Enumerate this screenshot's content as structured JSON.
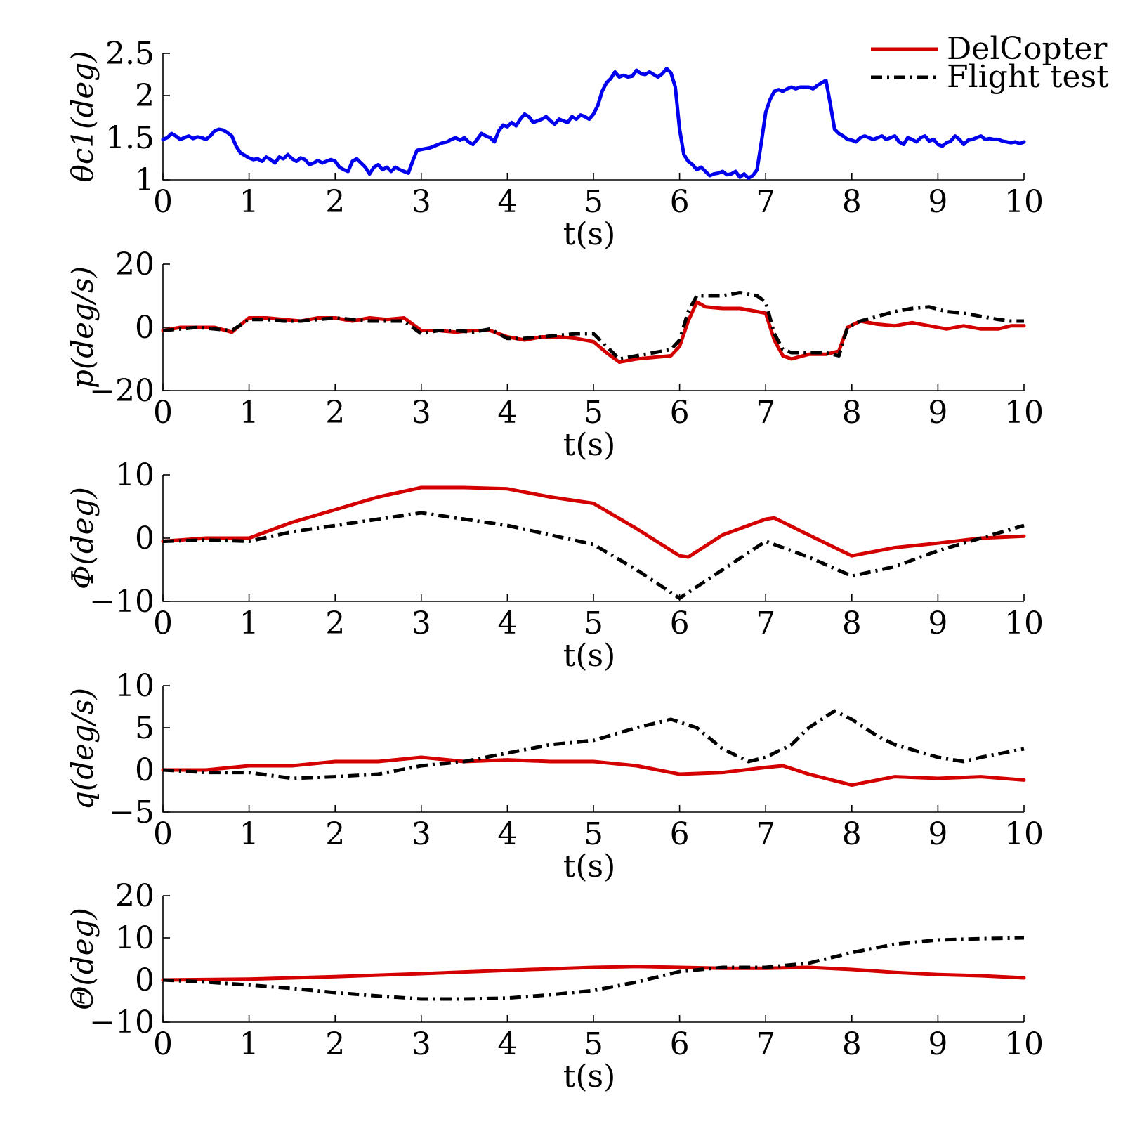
{
  "chart_data": [
    {
      "type": "line",
      "ylabel": "θc1(deg)",
      "xlabel": "t(s)",
      "xlim": [
        0,
        10
      ],
      "ylim": [
        1,
        2.5
      ],
      "xticks": [
        "0",
        "1",
        "2",
        "3",
        "4",
        "5",
        "6",
        "7",
        "8",
        "9",
        "10"
      ],
      "yticks": [
        "1",
        "1.5",
        "2",
        "2.5"
      ],
      "legend": {
        "position": "top-right",
        "entries": [
          {
            "name": "DelCopter",
            "color": "#d40000",
            "style": "solid"
          },
          {
            "name": "Flight test",
            "color": "#000000",
            "style": "dashdot"
          }
        ]
      },
      "series": [
        {
          "color": "#0000ee",
          "style": "solid",
          "x": [
            0,
            0.05,
            0.1,
            0.15,
            0.2,
            0.25,
            0.3,
            0.35,
            0.4,
            0.45,
            0.5,
            0.55,
            0.6,
            0.65,
            0.7,
            0.75,
            0.8,
            0.85,
            0.9,
            0.95,
            1,
            1.05,
            1.1,
            1.15,
            1.2,
            1.25,
            1.3,
            1.35,
            1.4,
            1.45,
            1.5,
            1.55,
            1.6,
            1.65,
            1.7,
            1.75,
            1.8,
            1.85,
            1.9,
            1.95,
            2,
            2.05,
            2.1,
            2.15,
            2.2,
            2.25,
            2.3,
            2.35,
            2.4,
            2.45,
            2.5,
            2.55,
            2.6,
            2.65,
            2.7,
            2.75,
            2.8,
            2.85,
            2.9,
            2.95,
            3,
            3.05,
            3.1,
            3.15,
            3.2,
            3.25,
            3.3,
            3.35,
            3.4,
            3.45,
            3.5,
            3.55,
            3.6,
            3.65,
            3.7,
            3.75,
            3.8,
            3.85,
            3.9,
            3.95,
            4,
            4.05,
            4.1,
            4.15,
            4.2,
            4.25,
            4.3,
            4.35,
            4.4,
            4.45,
            4.5,
            4.55,
            4.6,
            4.65,
            4.7,
            4.75,
            4.8,
            4.85,
            4.9,
            4.95,
            5,
            5.05,
            5.1,
            5.15,
            5.2,
            5.25,
            5.3,
            5.35,
            5.4,
            5.45,
            5.5,
            5.55,
            5.6,
            5.65,
            5.7,
            5.75,
            5.8,
            5.85,
            5.9,
            5.95,
            6,
            6.05,
            6.1,
            6.15,
            6.2,
            6.25,
            6.3,
            6.35,
            6.4,
            6.45,
            6.5,
            6.55,
            6.6,
            6.65,
            6.7,
            6.75,
            6.8,
            6.85,
            6.9,
            6.95,
            7,
            7.05,
            7.1,
            7.15,
            7.2,
            7.25,
            7.3,
            7.35,
            7.4,
            7.45,
            7.5,
            7.55,
            7.6,
            7.65,
            7.7,
            7.75,
            7.8,
            7.85,
            7.9,
            7.95,
            8,
            8.05,
            8.1,
            8.15,
            8.2,
            8.25,
            8.3,
            8.35,
            8.4,
            8.45,
            8.5,
            8.55,
            8.6,
            8.65,
            8.7,
            8.75,
            8.8,
            8.85,
            8.9,
            8.95,
            9,
            9.05,
            9.1,
            9.15,
            9.2,
            9.25,
            9.3,
            9.35,
            9.4,
            9.45,
            9.5,
            9.55,
            9.6,
            9.65,
            9.7,
            9.75,
            9.8,
            9.85,
            9.9,
            9.95,
            10
          ],
          "y": [
            1.48,
            1.5,
            1.55,
            1.52,
            1.48,
            1.5,
            1.52,
            1.49,
            1.51,
            1.5,
            1.48,
            1.52,
            1.58,
            1.6,
            1.59,
            1.56,
            1.52,
            1.4,
            1.32,
            1.29,
            1.26,
            1.24,
            1.25,
            1.22,
            1.27,
            1.24,
            1.2,
            1.27,
            1.25,
            1.3,
            1.25,
            1.22,
            1.26,
            1.24,
            1.18,
            1.2,
            1.23,
            1.2,
            1.22,
            1.24,
            1.22,
            1.15,
            1.12,
            1.1,
            1.22,
            1.25,
            1.2,
            1.15,
            1.07,
            1.15,
            1.18,
            1.12,
            1.15,
            1.1,
            1.15,
            1.12,
            1.1,
            1.08,
            1.22,
            1.35,
            1.36,
            1.37,
            1.38,
            1.4,
            1.42,
            1.44,
            1.45,
            1.48,
            1.5,
            1.47,
            1.5,
            1.45,
            1.42,
            1.48,
            1.55,
            1.52,
            1.5,
            1.45,
            1.58,
            1.65,
            1.63,
            1.68,
            1.64,
            1.72,
            1.78,
            1.75,
            1.68,
            1.7,
            1.72,
            1.75,
            1.7,
            1.66,
            1.72,
            1.7,
            1.68,
            1.75,
            1.72,
            1.77,
            1.75,
            1.72,
            1.78,
            1.88,
            2.05,
            2.15,
            2.2,
            2.28,
            2.22,
            2.24,
            2.22,
            2.23,
            2.3,
            2.26,
            2.25,
            2.28,
            2.25,
            2.22,
            2.26,
            2.32,
            2.27,
            2.1,
            1.6,
            1.3,
            1.22,
            1.18,
            1.12,
            1.15,
            1.1,
            1.05,
            1.07,
            1.08,
            1.1,
            1.06,
            1.07,
            1.1,
            1.03,
            1.07,
            1.02,
            1.05,
            1.12,
            1.45,
            1.8,
            1.95,
            2.05,
            2.07,
            2.05,
            2.08,
            2.1,
            2.08,
            2.1,
            2.1,
            2.1,
            2.08,
            2.12,
            2.15,
            2.18,
            1.9,
            1.6,
            1.55,
            1.52,
            1.48,
            1.47,
            1.45,
            1.5,
            1.52,
            1.5,
            1.48,
            1.5,
            1.52,
            1.48,
            1.5,
            1.52,
            1.45,
            1.42,
            1.5,
            1.48,
            1.45,
            1.5,
            1.52,
            1.46,
            1.48,
            1.42,
            1.4,
            1.44,
            1.46,
            1.52,
            1.48,
            1.42,
            1.47,
            1.48,
            1.5,
            1.52,
            1.48,
            1.49,
            1.48,
            1.48,
            1.46,
            1.45,
            1.44,
            1.45,
            1.43,
            1.45
          ]
        }
      ]
    },
    {
      "type": "line",
      "ylabel": "p(deg/s)",
      "xlabel": "t(s)",
      "xlim": [
        0,
        10
      ],
      "ylim": [
        -20,
        20
      ],
      "xticks": [
        "0",
        "1",
        "2",
        "3",
        "4",
        "5",
        "6",
        "7",
        "8",
        "9",
        "10"
      ],
      "yticks": [
        "−20",
        "0",
        "20"
      ],
      "series": [
        {
          "name": "DelCopter",
          "color": "#d40000",
          "style": "solid",
          "x": [
            0,
            0.2,
            0.4,
            0.6,
            0.8,
            1.0,
            1.2,
            1.4,
            1.6,
            1.8,
            2.0,
            2.2,
            2.4,
            2.6,
            2.8,
            3.0,
            3.2,
            3.4,
            3.6,
            3.8,
            4.0,
            4.2,
            4.4,
            4.6,
            4.8,
            5.0,
            5.15,
            5.3,
            5.5,
            5.7,
            5.9,
            6.0,
            6.1,
            6.2,
            6.3,
            6.5,
            6.7,
            6.9,
            7.0,
            7.1,
            7.2,
            7.3,
            7.5,
            7.7,
            7.85,
            7.95,
            8.1,
            8.3,
            8.5,
            8.7,
            8.9,
            9.1,
            9.3,
            9.5,
            9.7,
            9.85,
            10
          ],
          "y": [
            -1,
            0,
            0,
            0,
            -1.5,
            3,
            3,
            2.5,
            2,
            3,
            3,
            2,
            3,
            2.5,
            3,
            -1,
            -1,
            -1.5,
            -1,
            -1,
            -3,
            -4,
            -3,
            -3,
            -3.5,
            -4.5,
            -8,
            -11,
            -10,
            -9.5,
            -9,
            -6,
            2,
            8,
            6.5,
            6,
            6,
            5,
            4.5,
            -4,
            -9,
            -10,
            -8.5,
            -8.5,
            -7.5,
            0,
            2,
            1,
            0.5,
            1.5,
            0.5,
            -0.5,
            0.5,
            -0.5,
            -0.5,
            0.5,
            0.5
          ]
        },
        {
          "name": "Flight test",
          "color": "#000000",
          "style": "dashdot",
          "x": [
            0,
            0.2,
            0.4,
            0.6,
            0.8,
            1.0,
            1.2,
            1.4,
            1.6,
            1.8,
            2.0,
            2.2,
            2.4,
            2.6,
            2.8,
            3.0,
            3.2,
            3.4,
            3.6,
            3.8,
            4.0,
            4.2,
            4.4,
            4.6,
            4.8,
            5.0,
            5.15,
            5.3,
            5.5,
            5.7,
            5.9,
            6.0,
            6.1,
            6.2,
            6.3,
            6.5,
            6.7,
            6.9,
            7.0,
            7.1,
            7.2,
            7.3,
            7.5,
            7.7,
            7.85,
            7.95,
            8.1,
            8.3,
            8.5,
            8.7,
            8.9,
            9.1,
            9.3,
            9.5,
            9.7,
            9.85,
            10
          ],
          "y": [
            -1,
            -0.5,
            0,
            -0.5,
            -1,
            2.5,
            2.5,
            2,
            2,
            2.5,
            3,
            2.5,
            2,
            2,
            2,
            -2,
            -1,
            -1,
            -1.5,
            -0.5,
            -3.5,
            -3.5,
            -3,
            -2.5,
            -2,
            -2,
            -6,
            -10,
            -9,
            -8,
            -7,
            -4,
            5,
            10,
            10,
            10,
            11,
            10,
            8,
            -2,
            -7,
            -8,
            -8,
            -8,
            -9,
            0,
            2,
            3.5,
            5,
            6,
            6.5,
            5,
            4.5,
            3.5,
            2.5,
            2,
            2
          ]
        }
      ]
    },
    {
      "type": "line",
      "ylabel": "Φ(deg)",
      "xlabel": "t(s)",
      "xlim": [
        0,
        10
      ],
      "ylim": [
        -10,
        10
      ],
      "xticks": [
        "0",
        "1",
        "2",
        "3",
        "4",
        "5",
        "6",
        "7",
        "8",
        "9",
        "10"
      ],
      "yticks": [
        "−10",
        "0",
        "10"
      ],
      "series": [
        {
          "name": "DelCopter",
          "color": "#d40000",
          "style": "solid",
          "x": [
            0,
            0.5,
            1.0,
            1.5,
            2.0,
            2.5,
            3.0,
            3.5,
            4.0,
            4.5,
            5.0,
            5.5,
            6.0,
            6.1,
            6.5,
            7.0,
            7.1,
            7.5,
            8.0,
            8.5,
            9.0,
            9.5,
            10
          ],
          "y": [
            -0.5,
            0,
            0,
            2.5,
            4.5,
            6.5,
            8,
            8,
            7.8,
            6.5,
            5.5,
            1.5,
            -2.8,
            -3,
            0.5,
            3,
            3.2,
            0.5,
            -2.8,
            -1.5,
            -0.8,
            0,
            0.3
          ]
        },
        {
          "name": "Flight test",
          "color": "#000000",
          "style": "dashdot",
          "x": [
            0,
            0.5,
            1.0,
            1.5,
            2.0,
            2.5,
            3.0,
            3.5,
            4.0,
            4.5,
            5.0,
            5.5,
            6.0,
            6.5,
            7.0,
            7.5,
            8.0,
            8.5,
            9.0,
            9.5,
            10
          ],
          "y": [
            -0.5,
            -0.3,
            -0.5,
            1,
            2,
            3,
            4,
            3,
            2,
            0.5,
            -1,
            -5,
            -9.5,
            -5,
            -0.5,
            -3,
            -6,
            -4.5,
            -2,
            0,
            2
          ]
        }
      ]
    },
    {
      "type": "line",
      "ylabel": "q(deg/s)",
      "xlabel": "t(s)",
      "xlim": [
        0,
        10
      ],
      "ylim": [
        -5,
        10
      ],
      "xticks": [
        "0",
        "1",
        "2",
        "3",
        "4",
        "5",
        "6",
        "7",
        "8",
        "9",
        "10"
      ],
      "yticks": [
        "−5",
        "0",
        "5",
        "10"
      ],
      "series": [
        {
          "name": "DelCopter",
          "color": "#d40000",
          "style": "solid",
          "x": [
            0,
            0.5,
            1.0,
            1.5,
            2.0,
            2.5,
            3.0,
            3.5,
            4.0,
            4.5,
            5.0,
            5.5,
            6.0,
            6.5,
            7.0,
            7.2,
            7.5,
            8.0,
            8.5,
            9.0,
            9.5,
            10
          ],
          "y": [
            0,
            0,
            0.5,
            0.5,
            1,
            1,
            1.5,
            1,
            1.2,
            1,
            1,
            0.5,
            -0.5,
            -0.3,
            0.3,
            0.5,
            -0.5,
            -1.8,
            -0.8,
            -1,
            -0.8,
            -1.2
          ]
        },
        {
          "name": "Flight test",
          "color": "#000000",
          "style": "dashdot",
          "x": [
            0,
            0.5,
            1.0,
            1.5,
            2.0,
            2.5,
            3.0,
            3.5,
            4.0,
            4.5,
            5.0,
            5.5,
            5.9,
            6.2,
            6.5,
            6.8,
            7.0,
            7.3,
            7.5,
            7.8,
            8.0,
            8.3,
            8.5,
            9.0,
            9.3,
            9.5,
            10
          ],
          "y": [
            0,
            -0.3,
            -0.3,
            -1,
            -0.8,
            -0.5,
            0.5,
            1,
            2,
            3,
            3.5,
            5,
            6,
            5,
            2.5,
            1,
            1.5,
            3,
            5,
            7,
            6,
            4,
            3,
            1.5,
            1,
            1.5,
            2.5
          ]
        }
      ]
    },
    {
      "type": "line",
      "ylabel": "Θ(deg)",
      "xlabel": "t(s)",
      "xlim": [
        0,
        10
      ],
      "ylim": [
        -10,
        20
      ],
      "xticks": [
        "0",
        "1",
        "2",
        "3",
        "4",
        "5",
        "6",
        "7",
        "8",
        "9",
        "10"
      ],
      "yticks": [
        "−10",
        "0",
        "10",
        "20"
      ],
      "series": [
        {
          "name": "DelCopter",
          "color": "#d40000",
          "style": "solid",
          "x": [
            0,
            1,
            2,
            3,
            4,
            5,
            5.5,
            6,
            6.5,
            7,
            7.5,
            8,
            8.5,
            9,
            9.5,
            10
          ],
          "y": [
            0,
            0.2,
            0.8,
            1.5,
            2.3,
            3,
            3.2,
            3,
            2.8,
            2.8,
            3,
            2.5,
            1.8,
            1.3,
            1,
            0.5
          ]
        },
        {
          "name": "Flight test",
          "color": "#000000",
          "style": "dashdot",
          "x": [
            0,
            0.5,
            1,
            1.5,
            2,
            2.5,
            3,
            3.5,
            4,
            4.5,
            5,
            5.5,
            6,
            6.5,
            7,
            7.5,
            8,
            8.5,
            9,
            9.5,
            10
          ],
          "y": [
            0,
            -0.5,
            -1.2,
            -2,
            -3,
            -3.8,
            -4.5,
            -4.5,
            -4.3,
            -3.5,
            -2.5,
            -0.5,
            2,
            3,
            3,
            4,
            6.5,
            8.5,
            9.5,
            9.8,
            10
          ]
        }
      ]
    }
  ]
}
